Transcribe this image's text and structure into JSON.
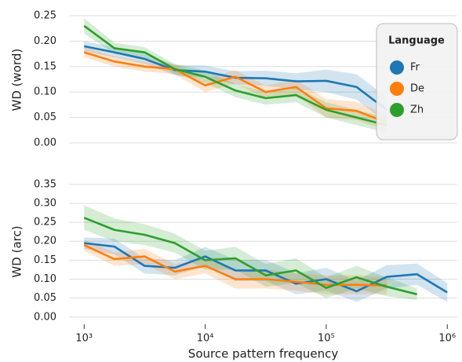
{
  "chart_data": [
    {
      "type": "line",
      "y_label": "WD (word)",
      "x": [
        1000,
        1778,
        3162,
        5623,
        10000,
        17783,
        31623,
        56234,
        100000,
        177828,
        316228,
        562341,
        1000000
      ],
      "xlim": [
        750,
        1210000
      ],
      "log_x": true,
      "ylim": [
        -0.012,
        0.26
      ],
      "yticks": [
        {
          "value": 0,
          "label": "0.00"
        },
        0.05,
        {
          "value": 0.1,
          "label": "0.10"
        },
        0.15,
        {
          "value": 0.2,
          "label": "0.20"
        },
        0.25
      ],
      "grid": true,
      "legend": {
        "title": "Language",
        "position": "upper right"
      },
      "series": [
        {
          "name": "Fr",
          "color": "#1f77b4",
          "values": [
            0.19,
            0.178,
            0.165,
            0.143,
            0.14,
            0.128,
            0.127,
            0.121,
            0.122,
            0.11,
            0.065,
            null,
            null
          ],
          "lower": [
            0.18,
            0.168,
            0.155,
            0.133,
            0.128,
            0.115,
            0.112,
            0.105,
            0.1,
            0.085,
            0.04,
            null,
            null
          ],
          "upper": [
            0.2,
            0.188,
            0.175,
            0.153,
            0.152,
            0.141,
            0.142,
            0.137,
            0.144,
            0.135,
            0.09,
            null,
            null
          ]
        },
        {
          "name": "De",
          "color": "#ff7f0e",
          "values": [
            0.178,
            0.16,
            0.15,
            0.145,
            0.113,
            0.13,
            0.1,
            0.11,
            0.068,
            0.063,
            0.04,
            null,
            null
          ],
          "lower": [
            0.168,
            0.15,
            0.14,
            0.135,
            0.1,
            0.117,
            0.087,
            0.095,
            0.05,
            0.045,
            0.025,
            null,
            null
          ],
          "upper": [
            0.188,
            0.17,
            0.16,
            0.155,
            0.126,
            0.143,
            0.113,
            0.125,
            0.086,
            0.081,
            0.055,
            null,
            null
          ]
        },
        {
          "name": "Zh",
          "color": "#2ca02c",
          "values": [
            0.23,
            0.186,
            0.178,
            0.145,
            0.13,
            0.103,
            0.088,
            0.094,
            0.065,
            0.05,
            0.035,
            null,
            null
          ],
          "lower": [
            0.215,
            0.175,
            0.168,
            0.135,
            0.118,
            0.09,
            0.075,
            0.08,
            0.05,
            0.035,
            0.02,
            null,
            null
          ],
          "upper": [
            0.245,
            0.197,
            0.188,
            0.155,
            0.142,
            0.116,
            0.101,
            0.108,
            0.08,
            0.065,
            0.05,
            null,
            null
          ]
        }
      ]
    },
    {
      "type": "line",
      "y_label": "WD (arc)",
      "x_label": "Source pattern frequency",
      "x": [
        1000,
        1778,
        3162,
        5623,
        10000,
        17783,
        31623,
        56234,
        100000,
        177828,
        316228,
        562341,
        1000000
      ],
      "xlim": [
        750,
        1210000
      ],
      "log_x": true,
      "xticks": [
        {
          "value": 1000,
          "label": "10³"
        },
        {
          "value": 10000,
          "label": "10⁴"
        },
        {
          "value": 100000,
          "label": "10⁵"
        },
        {
          "value": 1000000,
          "label": "10⁶"
        }
      ],
      "ylim": [
        -0.015,
        0.36
      ],
      "yticks": [
        {
          "value": 0,
          "label": "0.00"
        },
        0.05,
        {
          "value": 0.1,
          "label": "0.10"
        },
        0.15,
        {
          "value": 0.2,
          "label": "0.20"
        },
        0.25,
        {
          "value": 0.3,
          "label": "0.30"
        },
        0.35
      ],
      "grid": true,
      "series": [
        {
          "name": "Fr",
          "color": "#1f77b4",
          "values": [
            0.195,
            0.186,
            0.135,
            0.13,
            0.16,
            0.123,
            0.123,
            0.088,
            0.1,
            0.068,
            0.106,
            0.113,
            0.065
          ],
          "lower": [
            0.18,
            0.165,
            0.115,
            0.11,
            0.135,
            0.095,
            0.095,
            0.06,
            0.07,
            0.04,
            0.075,
            0.085,
            0.04
          ],
          "upper": [
            0.21,
            0.207,
            0.155,
            0.15,
            0.185,
            0.151,
            0.151,
            0.116,
            0.13,
            0.096,
            0.137,
            0.141,
            0.09
          ]
        },
        {
          "name": "De",
          "color": "#ff7f0e",
          "values": [
            0.19,
            0.153,
            0.16,
            0.12,
            0.135,
            0.1,
            0.1,
            0.093,
            0.085,
            0.085,
            0.083,
            null,
            null
          ],
          "lower": [
            0.175,
            0.135,
            0.14,
            0.1,
            0.115,
            0.075,
            0.075,
            0.07,
            0.06,
            0.06,
            0.06,
            null,
            null
          ],
          "upper": [
            0.205,
            0.171,
            0.18,
            0.14,
            0.155,
            0.125,
            0.125,
            0.116,
            0.11,
            0.11,
            0.106,
            null,
            null
          ]
        },
        {
          "name": "Zh",
          "color": "#2ca02c",
          "values": [
            0.262,
            0.23,
            0.217,
            0.195,
            0.15,
            0.155,
            0.11,
            0.123,
            0.077,
            0.105,
            0.08,
            0.06,
            null
          ],
          "lower": [
            0.23,
            0.2,
            0.19,
            0.17,
            0.125,
            0.125,
            0.08,
            0.09,
            0.05,
            0.075,
            0.055,
            0.045,
            null
          ],
          "upper": [
            0.295,
            0.26,
            0.245,
            0.22,
            0.175,
            0.185,
            0.14,
            0.155,
            0.105,
            0.135,
            0.105,
            0.075,
            null
          ]
        }
      ]
    }
  ]
}
